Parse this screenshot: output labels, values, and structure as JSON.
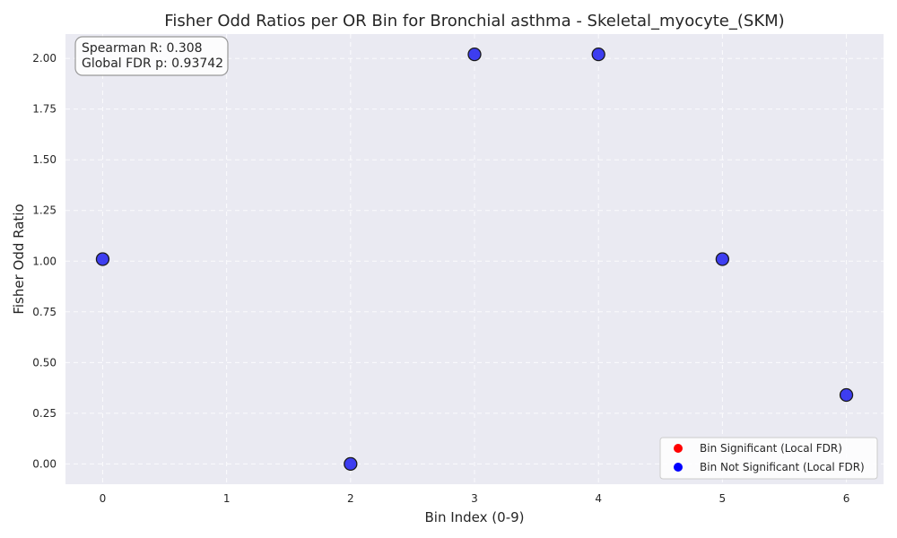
{
  "chart_data": {
    "type": "scatter",
    "title": "Fisher Odd Ratios per OR Bin for Bronchial asthma - Skeletal_myocyte_(SKM)",
    "xlabel": "Bin Index (0-9)",
    "ylabel": "Fisher Odd Ratio",
    "xlim": [
      -0.3,
      6.3
    ],
    "ylim": [
      -0.1,
      2.12
    ],
    "xticks": [
      0,
      1,
      2,
      3,
      4,
      5,
      6
    ],
    "yticks": [
      0.0,
      0.25,
      0.5,
      0.75,
      1.0,
      1.25,
      1.5,
      1.75,
      2.0
    ],
    "x_tick_labels": [
      "0",
      "1",
      "2",
      "3",
      "4",
      "5",
      "6"
    ],
    "y_tick_labels": [
      "0.00",
      "0.25",
      "0.50",
      "0.75",
      "1.00",
      "1.25",
      "1.50",
      "1.75",
      "2.00"
    ],
    "grid": true,
    "legend_position": "bottom-right",
    "series": [
      {
        "name": "Bin Significant (Local FDR)",
        "color": "#ff0000",
        "points": []
      },
      {
        "name": "Bin Not Significant (Local FDR)",
        "color": "#0000ff",
        "points": [
          {
            "x": 0,
            "y": 1.01
          },
          {
            "x": 2,
            "y": 0.0
          },
          {
            "x": 3,
            "y": 2.02
          },
          {
            "x": 4,
            "y": 2.02
          },
          {
            "x": 5,
            "y": 1.01
          },
          {
            "x": 6,
            "y": 0.34
          }
        ]
      }
    ],
    "annotation": {
      "spearman": "Spearman R: 0.308",
      "fdr": "Global FDR p: 0.93742"
    },
    "colors": {
      "plot_background": "#eaeaf2",
      "point_fill": "#1f1ff0"
    }
  }
}
